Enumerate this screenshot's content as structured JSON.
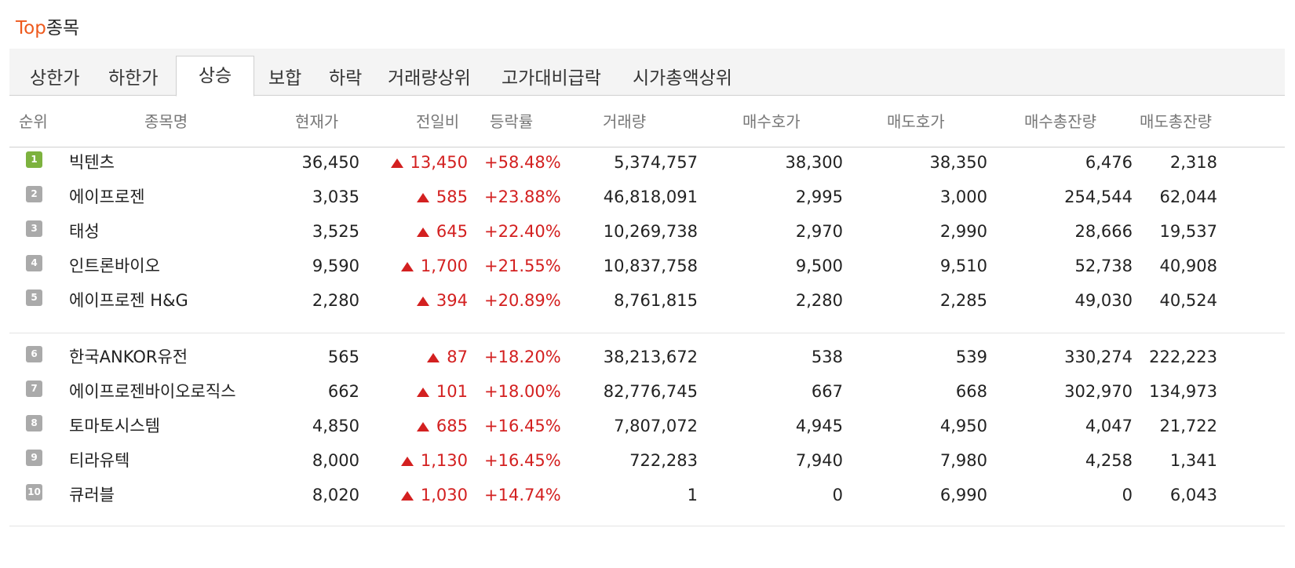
{
  "title": {
    "accent": "Top",
    "rest": "종목"
  },
  "tabs": [
    {
      "label": "상한가"
    },
    {
      "label": "하한가"
    },
    {
      "label": "상승"
    },
    {
      "label": "보합"
    },
    {
      "label": "하락"
    },
    {
      "label": "거래량상위"
    },
    {
      "label": "고가대비급락"
    },
    {
      "label": "시가총액상위"
    }
  ],
  "active_tab": "상승",
  "columns": {
    "rank": "순위",
    "name": "종목명",
    "price": "현재가",
    "change": "전일비",
    "rate": "등락률",
    "volume": "거래량",
    "bid": "매수호가",
    "ask": "매도호가",
    "bid_total": "매수총잔량",
    "ask_total": "매도총잔량"
  },
  "rows": [
    {
      "rank": "1",
      "name": "빅텐츠",
      "price": "36,450",
      "change": "13,450",
      "rate": "+58.48%",
      "volume": "5,374,757",
      "bid": "38,300",
      "ask": "38,350",
      "bid_total": "6,476",
      "ask_total": "2,318"
    },
    {
      "rank": "2",
      "name": "에이프로젠",
      "price": "3,035",
      "change": "585",
      "rate": "+23.88%",
      "volume": "46,818,091",
      "bid": "2,995",
      "ask": "3,000",
      "bid_total": "254,544",
      "ask_total": "62,044"
    },
    {
      "rank": "3",
      "name": "태성",
      "price": "3,525",
      "change": "645",
      "rate": "+22.40%",
      "volume": "10,269,738",
      "bid": "2,970",
      "ask": "2,990",
      "bid_total": "28,666",
      "ask_total": "19,537"
    },
    {
      "rank": "4",
      "name": "인트론바이오",
      "price": "9,590",
      "change": "1,700",
      "rate": "+21.55%",
      "volume": "10,837,758",
      "bid": "9,500",
      "ask": "9,510",
      "bid_total": "52,738",
      "ask_total": "40,908"
    },
    {
      "rank": "5",
      "name": "에이프로젠 H&G",
      "price": "2,280",
      "change": "394",
      "rate": "+20.89%",
      "volume": "8,761,815",
      "bid": "2,280",
      "ask": "2,285",
      "bid_total": "49,030",
      "ask_total": "40,524"
    },
    {
      "rank": "6",
      "name": "한국ANKOR유전",
      "price": "565",
      "change": "87",
      "rate": "+18.20%",
      "volume": "38,213,672",
      "bid": "538",
      "ask": "539",
      "bid_total": "330,274",
      "ask_total": "222,223"
    },
    {
      "rank": "7",
      "name": "에이프로젠바이오로직스",
      "price": "662",
      "change": "101",
      "rate": "+18.00%",
      "volume": "82,776,745",
      "bid": "667",
      "ask": "668",
      "bid_total": "302,970",
      "ask_total": "134,973"
    },
    {
      "rank": "8",
      "name": "토마토시스템",
      "price": "4,850",
      "change": "685",
      "rate": "+16.45%",
      "volume": "7,807,072",
      "bid": "4,945",
      "ask": "4,950",
      "bid_total": "4,047",
      "ask_total": "21,722"
    },
    {
      "rank": "9",
      "name": "티라유텍",
      "price": "8,000",
      "change": "1,130",
      "rate": "+16.45%",
      "volume": "722,283",
      "bid": "7,940",
      "ask": "7,980",
      "bid_total": "4,258",
      "ask_total": "1,341"
    },
    {
      "rank": "10",
      "name": "큐러블",
      "price": "8,020",
      "change": "1,030",
      "rate": "+14.74%",
      "volume": "1",
      "bid": "0",
      "ask": "6,990",
      "bid_total": "0",
      "ask_total": "6,043"
    }
  ],
  "colors": {
    "accent": "#ee5a1e",
    "up": "#d32020",
    "rank_first": "#7db23f",
    "rank_other": "#aaaaaa"
  },
  "icons": {
    "up_marker": "up-triangle-icon"
  }
}
